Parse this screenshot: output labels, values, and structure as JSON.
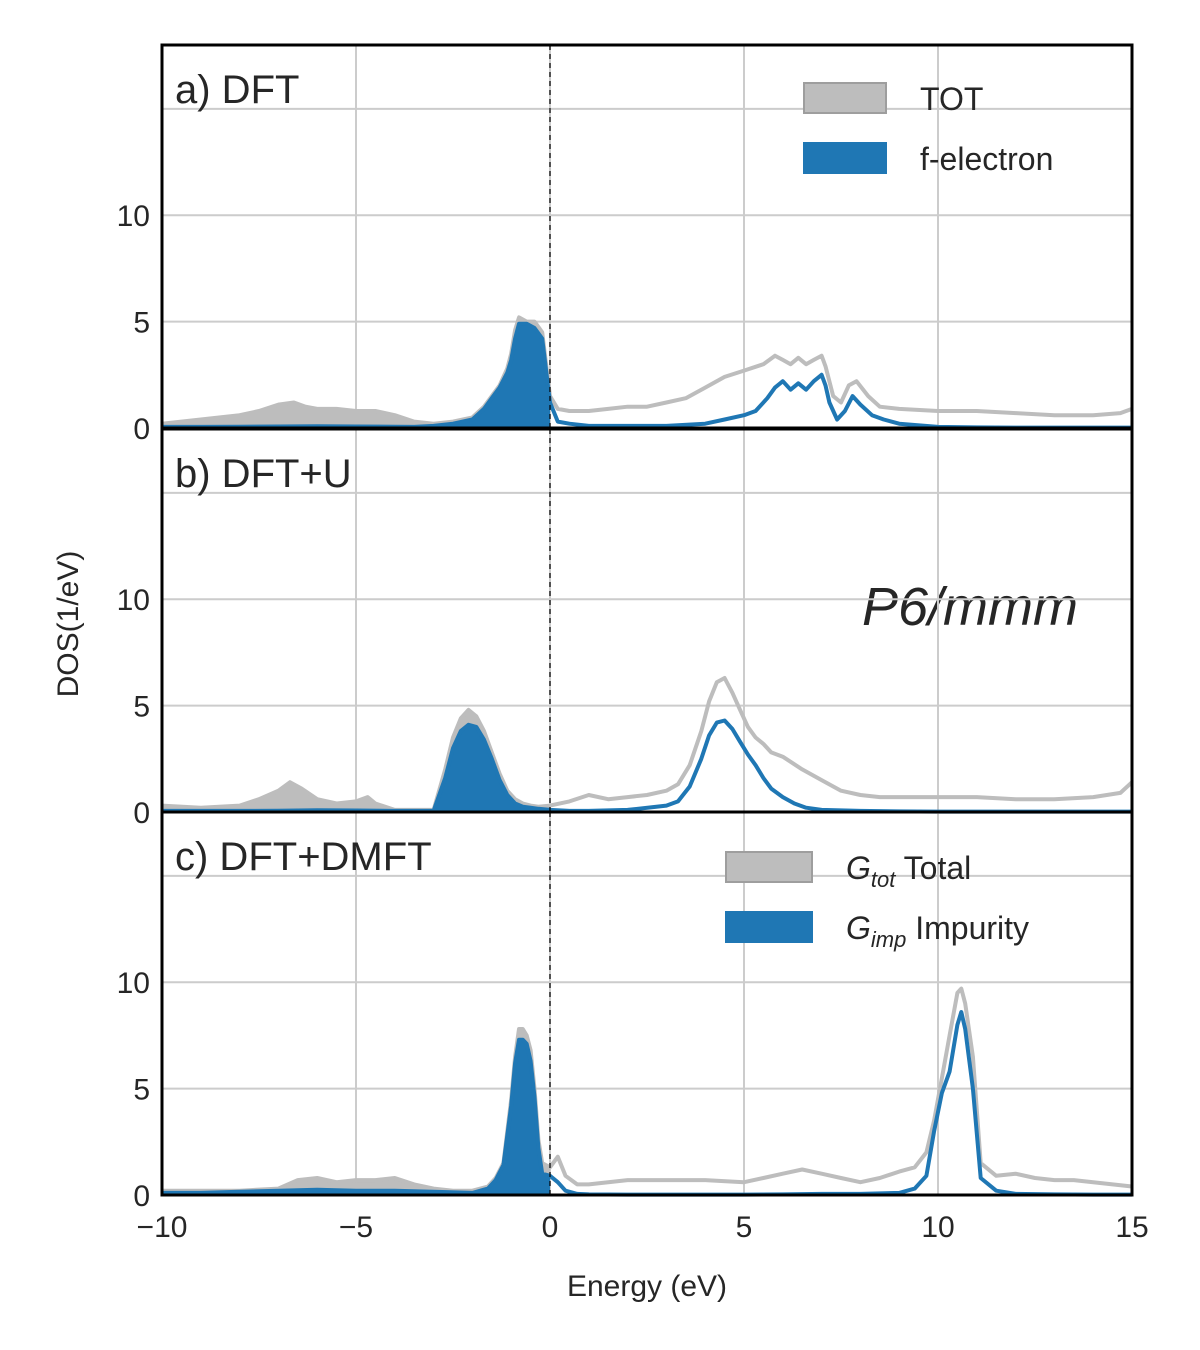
{
  "colors": {
    "total": "#bdbdbd",
    "total_edge": "#9e9e9e",
    "f": "#1f77b4",
    "grid": "#cccccc",
    "text": "#262626"
  },
  "chart_data": {
    "type": "area",
    "xlabel": "Energy (eV)",
    "ylabel": "DOS(1/eV)",
    "xlim": [
      -10,
      15
    ],
    "ylim": [
      0,
      18
    ],
    "xticks": [
      -10,
      -5,
      0,
      5,
      10,
      15
    ],
    "yticks": [
      0,
      5,
      10
    ],
    "fermi_level": 0,
    "annotation": "P6/mmm",
    "panels": [
      {
        "title": "a) DFT",
        "legend": [
          {
            "label": "TOT",
            "style": "total"
          },
          {
            "label": "f-electron",
            "style": "f"
          }
        ],
        "series": [
          {
            "name": "TOT",
            "x": [
              -10,
              -9,
              -8,
              -7.5,
              -7,
              -6.6,
              -6.3,
              -6,
              -5.5,
              -5,
              -4.5,
              -4,
              -3.5,
              -3,
              -2.5,
              -2,
              -1.7,
              -1.5,
              -1.3,
              -1.1,
              -1.0,
              -0.9,
              -0.8,
              -0.6,
              -0.4,
              -0.2,
              0,
              0.2,
              0.5,
              1,
              1.5,
              2,
              2.5,
              3,
              3.5,
              4,
              4.5,
              5,
              5.5,
              5.8,
              6.0,
              6.2,
              6.4,
              6.6,
              6.8,
              7.0,
              7.1,
              7.3,
              7.5,
              7.7,
              7.9,
              8.2,
              8.5,
              9,
              10,
              11,
              12,
              13,
              14,
              14.7,
              15
            ],
            "y": [
              0.2,
              0.4,
              0.6,
              0.8,
              1.1,
              1.2,
              1.0,
              0.9,
              0.9,
              0.8,
              0.8,
              0.6,
              0.3,
              0.2,
              0.3,
              0.5,
              1.0,
              1.5,
              2.0,
              2.8,
              3.5,
              4.6,
              5.2,
              5.0,
              5.0,
              4.5,
              1.5,
              0.9,
              0.8,
              0.8,
              0.9,
              1.0,
              1.0,
              1.2,
              1.4,
              1.9,
              2.4,
              2.7,
              3.0,
              3.4,
              3.2,
              3.0,
              3.3,
              3.0,
              3.2,
              3.4,
              2.9,
              1.5,
              1.2,
              2.0,
              2.2,
              1.5,
              1.0,
              0.9,
              0.8,
              0.8,
              0.7,
              0.6,
              0.6,
              0.7,
              0.9
            ]
          },
          {
            "name": "f-electron",
            "x": [
              -10,
              -9,
              -8,
              -7,
              -6,
              -5,
              -4,
              -3.5,
              -3,
              -2.5,
              -2,
              -1.7,
              -1.5,
              -1.3,
              -1.1,
              -1.0,
              -0.9,
              -0.8,
              -0.6,
              -0.4,
              -0.2,
              0,
              0.2,
              0.5,
              1,
              2,
              3,
              4,
              4.5,
              5,
              5.3,
              5.6,
              5.8,
              6.0,
              6.2,
              6.4,
              6.6,
              6.8,
              7.0,
              7.1,
              7.2,
              7.4,
              7.6,
              7.8,
              8.0,
              8.3,
              8.6,
              9,
              10,
              11,
              12,
              13,
              14,
              15
            ],
            "y": [
              0.05,
              0.05,
              0.06,
              0.07,
              0.08,
              0.07,
              0.06,
              0.05,
              0.1,
              0.2,
              0.4,
              0.9,
              1.4,
              1.9,
              2.6,
              3.2,
              4.2,
              4.9,
              4.9,
              4.7,
              4.2,
              1.2,
              0.3,
              0.2,
              0.1,
              0.1,
              0.1,
              0.2,
              0.4,
              0.6,
              0.8,
              1.4,
              1.9,
              2.2,
              1.8,
              2.1,
              1.8,
              2.2,
              2.5,
              2.0,
              1.2,
              0.4,
              0.8,
              1.5,
              1.1,
              0.6,
              0.4,
              0.2,
              0.05,
              0.03,
              0.02,
              0.02,
              0.02,
              0.02
            ]
          }
        ]
      },
      {
        "title": "b) DFT+U",
        "legend": [],
        "series": [
          {
            "name": "TOT",
            "x": [
              -10,
              -9,
              -8,
              -7.5,
              -7,
              -6.7,
              -6.4,
              -6,
              -5.5,
              -5,
              -4.7,
              -4.5,
              -4,
              -3.5,
              -3,
              -2.7,
              -2.5,
              -2.3,
              -2.1,
              -1.9,
              -1.7,
              -1.5,
              -1.3,
              -1.1,
              -0.9,
              -0.7,
              -0.5,
              -0.3,
              0,
              0.5,
              1,
              1.5,
              2,
              2.5,
              3,
              3.3,
              3.6,
              3.9,
              4.1,
              4.3,
              4.5,
              4.7,
              4.9,
              5.1,
              5.3,
              5.5,
              5.7,
              6.0,
              6.5,
              7,
              7.5,
              8,
              8.5,
              9,
              10,
              11,
              12,
              13,
              14,
              14.7,
              15
            ],
            "y": [
              0.3,
              0.2,
              0.3,
              0.6,
              1.0,
              1.4,
              1.1,
              0.6,
              0.4,
              0.5,
              0.7,
              0.4,
              0.1,
              0.1,
              0.1,
              2.0,
              3.5,
              4.4,
              4.8,
              4.5,
              3.8,
              2.8,
              1.8,
              1.0,
              0.6,
              0.4,
              0.3,
              0.25,
              0.3,
              0.5,
              0.8,
              0.6,
              0.7,
              0.8,
              1.0,
              1.3,
              2.2,
              3.8,
              5.2,
              6.1,
              6.3,
              5.6,
              4.8,
              4.0,
              3.5,
              3.2,
              2.8,
              2.6,
              2.0,
              1.5,
              1.0,
              0.8,
              0.7,
              0.7,
              0.7,
              0.7,
              0.6,
              0.6,
              0.7,
              0.9,
              1.4
            ]
          },
          {
            "name": "f-electron",
            "x": [
              -10,
              -9,
              -8,
              -7,
              -6,
              -5,
              -4,
              -3.5,
              -3,
              -2.7,
              -2.5,
              -2.3,
              -2.1,
              -1.9,
              -1.7,
              -1.5,
              -1.3,
              -1.1,
              -0.9,
              -0.7,
              -0.5,
              -0.3,
              0,
              0.5,
              1,
              2,
              3,
              3.3,
              3.6,
              3.9,
              4.1,
              4.3,
              4.5,
              4.7,
              4.9,
              5.1,
              5.3,
              5.5,
              5.7,
              6.0,
              6.3,
              6.6,
              7,
              8,
              9,
              10,
              11,
              12,
              13,
              14,
              15
            ],
            "y": [
              0.05,
              0.05,
              0.05,
              0.06,
              0.08,
              0.07,
              0.05,
              0.05,
              0.05,
              1.6,
              3.0,
              3.8,
              4.1,
              4.0,
              3.4,
              2.5,
              1.5,
              0.8,
              0.4,
              0.25,
              0.2,
              0.15,
              0.1,
              0.05,
              0.05,
              0.1,
              0.3,
              0.5,
              1.2,
              2.5,
              3.6,
              4.2,
              4.3,
              3.9,
              3.3,
              2.7,
              2.2,
              1.6,
              1.1,
              0.7,
              0.4,
              0.2,
              0.1,
              0.05,
              0.03,
              0.02,
              0.02,
              0.02,
              0.02,
              0.02,
              0.02
            ]
          }
        ]
      },
      {
        "title": "c) DFT+DMFT",
        "legend": [
          {
            "symbol": "G",
            "sub": "tot",
            "label": "Total",
            "style": "total"
          },
          {
            "symbol": "G",
            "sub": "imp",
            "label": "Impurity",
            "style": "f"
          }
        ],
        "series": [
          {
            "name": "G_tot Total",
            "x": [
              -10,
              -9,
              -8,
              -7,
              -6.5,
              -6,
              -5.5,
              -5,
              -4.5,
              -4,
              -3.5,
              -3,
              -2.5,
              -2,
              -1.6,
              -1.4,
              -1.2,
              -1.0,
              -0.9,
              -0.8,
              -0.7,
              -0.6,
              -0.5,
              -0.4,
              -0.3,
              -0.2,
              0,
              0.2,
              0.4,
              0.7,
              1,
              2,
              3,
              4,
              5,
              5.5,
              6,
              6.5,
              7,
              7.5,
              8,
              8.5,
              9,
              9.4,
              9.7,
              9.9,
              10.1,
              10.3,
              10.5,
              10.6,
              10.7,
              10.9,
              11.1,
              11.5,
              12,
              12.5,
              13,
              13.5,
              14,
              14.5,
              15
            ],
            "y": [
              0.2,
              0.2,
              0.2,
              0.3,
              0.7,
              0.8,
              0.6,
              0.7,
              0.7,
              0.8,
              0.5,
              0.3,
              0.2,
              0.2,
              0.4,
              0.8,
              1.5,
              4.5,
              6.5,
              7.8,
              7.8,
              7.5,
              6.8,
              5.0,
              2.6,
              1.5,
              1.3,
              1.8,
              0.9,
              0.5,
              0.5,
              0.7,
              0.7,
              0.7,
              0.6,
              0.8,
              1.0,
              1.2,
              1.0,
              0.8,
              0.6,
              0.8,
              1.1,
              1.3,
              2.0,
              3.5,
              5.5,
              7.5,
              9.5,
              9.7,
              9.0,
              6.5,
              1.5,
              0.9,
              1.0,
              0.8,
              0.7,
              0.7,
              0.6,
              0.5,
              0.4
            ]
          },
          {
            "name": "G_imp Impurity",
            "x": [
              -10,
              -9,
              -8,
              -7,
              -6,
              -5,
              -4,
              -3,
              -2,
              -1.6,
              -1.4,
              -1.2,
              -1.0,
              -0.9,
              -0.8,
              -0.7,
              -0.6,
              -0.5,
              -0.4,
              -0.3,
              -0.2,
              0,
              0.2,
              0.4,
              0.7,
              1,
              2,
              3,
              4,
              5,
              6,
              7,
              8,
              9,
              9.4,
              9.7,
              9.9,
              10.1,
              10.3,
              10.5,
              10.6,
              10.7,
              10.9,
              11.1,
              11.5,
              12,
              13,
              14,
              15
            ],
            "y": [
              0.1,
              0.1,
              0.15,
              0.2,
              0.25,
              0.2,
              0.2,
              0.15,
              0.1,
              0.3,
              0.7,
              1.4,
              4.2,
              6.2,
              7.3,
              7.3,
              7.1,
              6.3,
              4.6,
              2.2,
              1.0,
              0.9,
              0.6,
              0.2,
              0.05,
              0.03,
              0.02,
              0.02,
              0.02,
              0.02,
              0.03,
              0.05,
              0.05,
              0.1,
              0.3,
              0.9,
              3.0,
              4.8,
              5.8,
              8.0,
              8.6,
              7.8,
              5.0,
              0.8,
              0.2,
              0.05,
              0.03,
              0.02,
              0.02
            ]
          }
        ]
      }
    ]
  }
}
